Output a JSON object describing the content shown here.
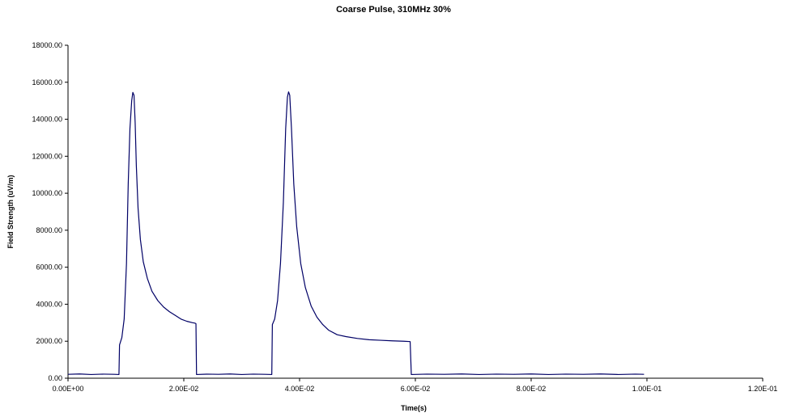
{
  "chart_data": {
    "type": "line",
    "title": "Coarse Pulse, 310MHz 30%",
    "xlabel": "Time(s)",
    "ylabel": "Field Strength (uV/m)",
    "xlim": [
      0,
      0.12
    ],
    "ylim": [
      0,
      18000
    ],
    "grid": false,
    "legend": "none",
    "x_ticks": [
      {
        "value": 0,
        "label": "0.00E+00"
      },
      {
        "value": 0.02,
        "label": "2.00E-02"
      },
      {
        "value": 0.04,
        "label": "4.00E-02"
      },
      {
        "value": 0.06,
        "label": "6.00E-02"
      },
      {
        "value": 0.08,
        "label": "8.00E-02"
      },
      {
        "value": 0.1,
        "label": "1.00E-01"
      },
      {
        "value": 0.12,
        "label": "1.20E-01"
      }
    ],
    "y_ticks": [
      {
        "value": 0,
        "label": "0.00"
      },
      {
        "value": 2000,
        "label": "2000.00"
      },
      {
        "value": 4000,
        "label": "4000.00"
      },
      {
        "value": 6000,
        "label": "6000.00"
      },
      {
        "value": 8000,
        "label": "8000.00"
      },
      {
        "value": 10000,
        "label": "10000.00"
      },
      {
        "value": 12000,
        "label": "12000.00"
      },
      {
        "value": 14000,
        "label": "14000.00"
      },
      {
        "value": 16000,
        "label": "16000.00"
      },
      {
        "value": 18000,
        "label": "18000.00"
      }
    ],
    "series": [
      {
        "color": "#000066",
        "points": [
          [
            0.0,
            210
          ],
          [
            0.002,
            230
          ],
          [
            0.004,
            200
          ],
          [
            0.006,
            220
          ],
          [
            0.008,
            210
          ],
          [
            0.0088,
            200
          ],
          [
            0.0089,
            1800
          ],
          [
            0.0093,
            2200
          ],
          [
            0.0097,
            3200
          ],
          [
            0.0101,
            6200
          ],
          [
            0.0104,
            10500
          ],
          [
            0.0107,
            13500
          ],
          [
            0.011,
            15000
          ],
          [
            0.0112,
            15450
          ],
          [
            0.0114,
            15300
          ],
          [
            0.0116,
            13800
          ],
          [
            0.0118,
            11500
          ],
          [
            0.0121,
            9200
          ],
          [
            0.0125,
            7500
          ],
          [
            0.013,
            6300
          ],
          [
            0.0137,
            5400
          ],
          [
            0.0145,
            4700
          ],
          [
            0.0155,
            4200
          ],
          [
            0.0165,
            3850
          ],
          [
            0.0175,
            3600
          ],
          [
            0.0185,
            3400
          ],
          [
            0.0195,
            3200
          ],
          [
            0.0205,
            3080
          ],
          [
            0.0215,
            3000
          ],
          [
            0.0219,
            2980
          ],
          [
            0.0221,
            2950
          ],
          [
            0.0222,
            200
          ],
          [
            0.024,
            220
          ],
          [
            0.026,
            210
          ],
          [
            0.028,
            230
          ],
          [
            0.03,
            200
          ],
          [
            0.032,
            220
          ],
          [
            0.034,
            210
          ],
          [
            0.0352,
            200
          ],
          [
            0.0353,
            2900
          ],
          [
            0.0357,
            3200
          ],
          [
            0.0362,
            4200
          ],
          [
            0.0367,
            6200
          ],
          [
            0.0372,
            9500
          ],
          [
            0.0376,
            13500
          ],
          [
            0.0379,
            15200
          ],
          [
            0.0381,
            15480
          ],
          [
            0.0383,
            15300
          ],
          [
            0.0386,
            13500
          ],
          [
            0.039,
            10500
          ],
          [
            0.0395,
            8200
          ],
          [
            0.0402,
            6200
          ],
          [
            0.041,
            4900
          ],
          [
            0.042,
            3900
          ],
          [
            0.043,
            3300
          ],
          [
            0.044,
            2900
          ],
          [
            0.045,
            2600
          ],
          [
            0.0465,
            2350
          ],
          [
            0.048,
            2250
          ],
          [
            0.05,
            2150
          ],
          [
            0.052,
            2080
          ],
          [
            0.054,
            2050
          ],
          [
            0.056,
            2020
          ],
          [
            0.058,
            2000
          ],
          [
            0.0591,
            1980
          ],
          [
            0.0593,
            200
          ],
          [
            0.062,
            220
          ],
          [
            0.065,
            210
          ],
          [
            0.068,
            230
          ],
          [
            0.071,
            200
          ],
          [
            0.074,
            220
          ],
          [
            0.077,
            210
          ],
          [
            0.08,
            230
          ],
          [
            0.083,
            200
          ],
          [
            0.086,
            220
          ],
          [
            0.089,
            210
          ],
          [
            0.092,
            230
          ],
          [
            0.095,
            200
          ],
          [
            0.098,
            220
          ],
          [
            0.0995,
            210
          ]
        ]
      }
    ]
  }
}
